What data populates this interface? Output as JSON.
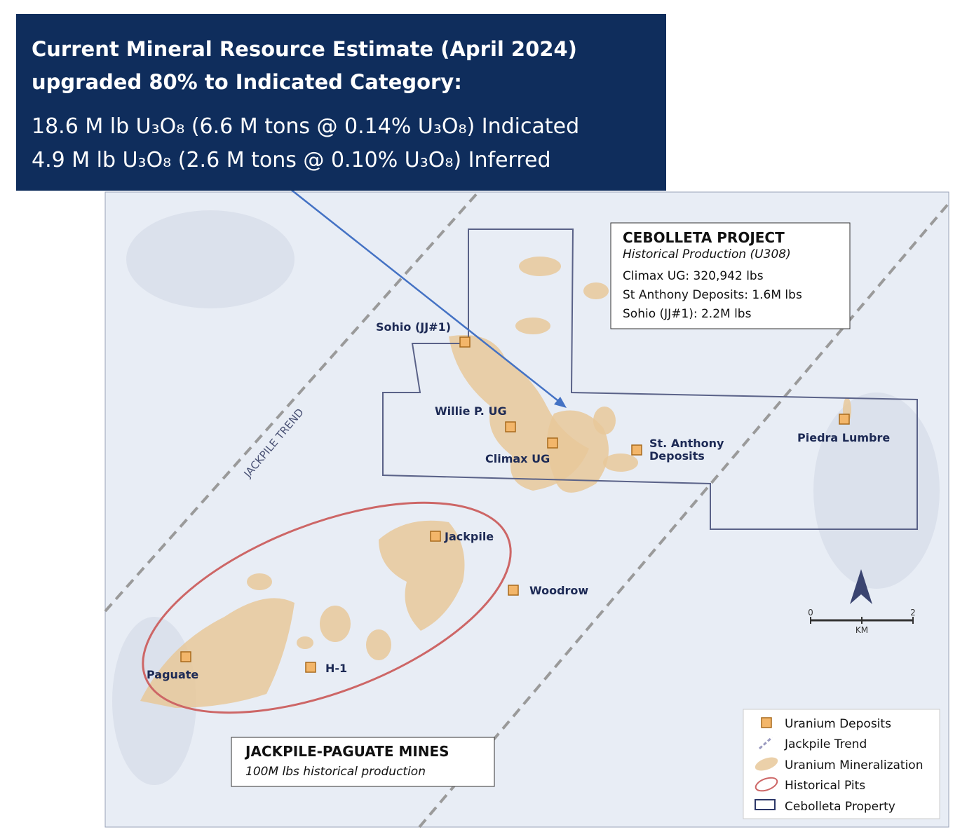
{
  "banner": {
    "heading": [
      "Current Mineral Resource Estimate (April 2024)",
      "upgraded 80% to Indicated Category:"
    ],
    "lines": [
      "18.6 M lb U₃O₈ (6.6 M tons @ 0.14% U₃O₈) Indicated",
      "4.9 M lb U₃O₈ (2.6 M tons @ 0.10% U₃O₈) Inferred"
    ]
  },
  "cebolleta_box": {
    "title": "CEBOLLETA PROJECT",
    "subtitle": "Historical Production (U308)",
    "items": [
      "Climax UG: 320,942 lbs",
      "St Anthony Deposits: 1.6M lbs",
      "Sohio (JJ#1): 2.2M lbs"
    ]
  },
  "jackpile_box": {
    "title": "JACKPILE-PAGUATE MINES",
    "subtitle": "100M lbs historical production"
  },
  "trend_label": "JACKPILE TREND",
  "deposits": [
    "Sohio (JJ#1)",
    "Willie P. UG",
    "Climax UG",
    "St. Anthony",
    "Deposits",
    "Piedra Lumbre",
    "Jackpile",
    "Woodrow",
    "Paguate",
    "H-1"
  ],
  "scale": {
    "start": "0",
    "end": "2",
    "unit": "KM"
  },
  "legend": [
    "Uranium Deposits",
    "Jackpile Trend",
    "Uranium Mineralization",
    "Historical Pits",
    "Cebolleta Property"
  ]
}
